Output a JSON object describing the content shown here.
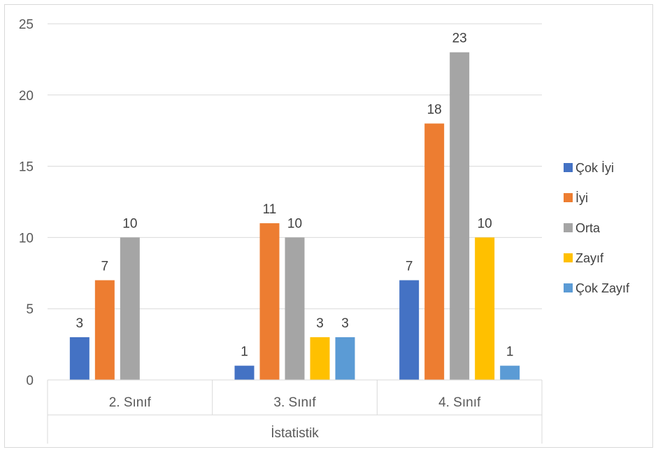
{
  "chart_data": {
    "type": "bar",
    "categories": [
      "2. Sınıf",
      "3. Sınıf",
      "4. Sınıf"
    ],
    "group_label": "İstatistik",
    "series": [
      {
        "name": "Çok İyi",
        "color": "#4472C4",
        "values": [
          3,
          1,
          7
        ]
      },
      {
        "name": "İyi",
        "color": "#ED7D31",
        "values": [
          7,
          11,
          18
        ]
      },
      {
        "name": "Orta",
        "color": "#A5A5A5",
        "values": [
          10,
          10,
          23
        ]
      },
      {
        "name": "Zayıf",
        "color": "#FFC000",
        "values": [
          null,
          3,
          10
        ]
      },
      {
        "name": "Çok Zayıf",
        "color": "#5B9BD5",
        "values": [
          null,
          3,
          1
        ]
      }
    ],
    "yticks": [
      0,
      5,
      10,
      15,
      20,
      25
    ],
    "ylim": [
      0,
      25
    ],
    "grid": true,
    "legend": "right"
  }
}
